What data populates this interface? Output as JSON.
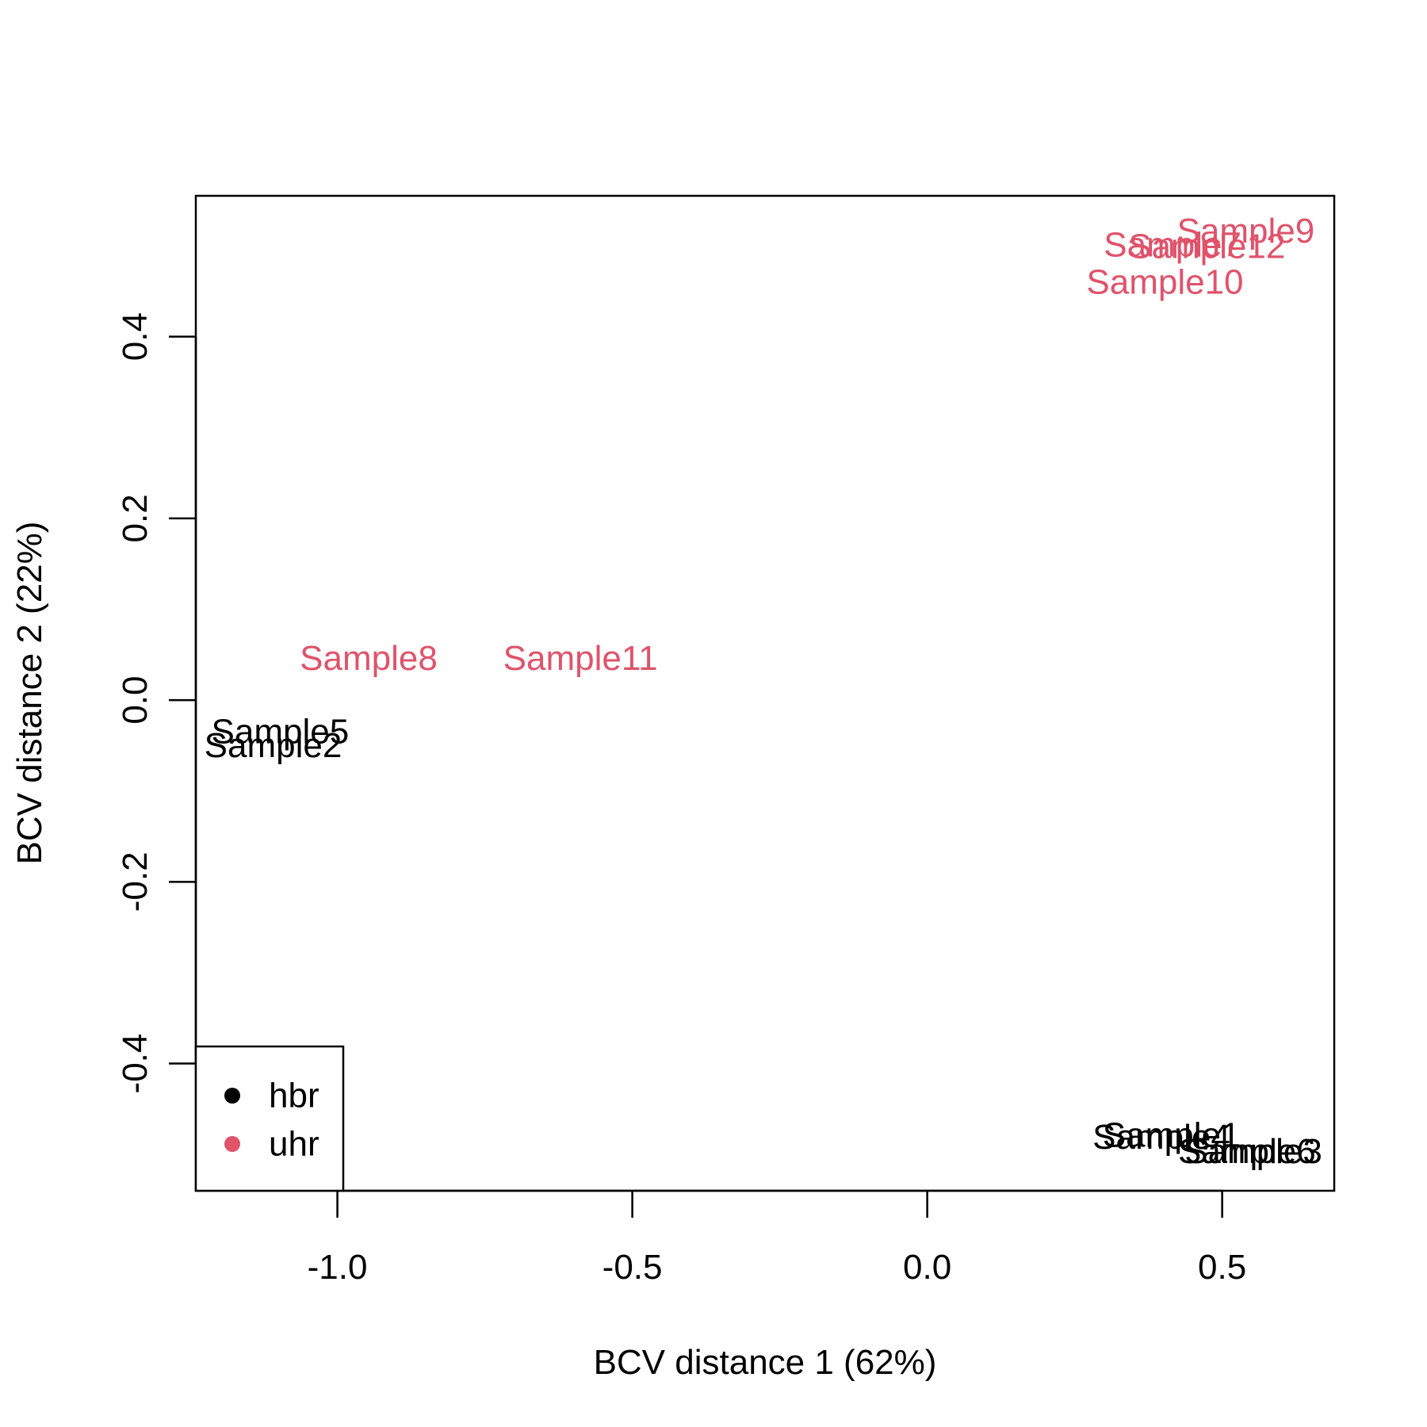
{
  "chart_data": {
    "type": "scatter",
    "title": "",
    "xlabel": "BCV distance 1 (62%)",
    "ylabel": "BCV distance 2 (22%)",
    "xlim": [
      -1.24,
      0.69
    ],
    "ylim": [
      -0.54,
      0.555
    ],
    "x_ticks": [
      -1.0,
      -0.5,
      0.0,
      0.5
    ],
    "x_tick_labels": [
      "-1.0",
      "-0.5",
      "0.0",
      "0.5"
    ],
    "y_ticks": [
      -0.4,
      -0.2,
      0.0,
      0.2,
      0.4
    ],
    "y_tick_labels": [
      "-0.4",
      "-0.2",
      "0.0",
      "0.2",
      "0.4"
    ],
    "grid": false,
    "legend_position": "bottom-left",
    "groups": [
      {
        "name": "hbr",
        "color": "#000000"
      },
      {
        "name": "uhr",
        "color": "#DF536B"
      }
    ],
    "points": [
      {
        "label": "Sample1",
        "group": "hbr",
        "x": 0.414,
        "y": -0.479
      },
      {
        "label": "Sample2",
        "group": "hbr",
        "x": -1.109,
        "y": -0.05
      },
      {
        "label": "Sample3",
        "group": "hbr",
        "x": 0.553,
        "y": -0.497
      },
      {
        "label": "Sample4",
        "group": "hbr",
        "x": 0.397,
        "y": -0.481
      },
      {
        "label": "Sample5",
        "group": "hbr",
        "x": -1.097,
        "y": -0.035
      },
      {
        "label": "Sample6",
        "group": "hbr",
        "x": 0.542,
        "y": -0.497
      },
      {
        "label": "Sample7",
        "group": "uhr",
        "x": 0.416,
        "y": 0.501
      },
      {
        "label": "Sample8",
        "group": "uhr",
        "x": -0.947,
        "y": 0.046
      },
      {
        "label": "Sample9",
        "group": "uhr",
        "x": 0.54,
        "y": 0.516
      },
      {
        "label": "Sample10",
        "group": "uhr",
        "x": 0.403,
        "y": 0.46
      },
      {
        "label": "Sample11",
        "group": "uhr",
        "x": -0.588,
        "y": 0.046
      },
      {
        "label": "Sample12",
        "group": "uhr",
        "x": 0.474,
        "y": 0.499
      }
    ]
  }
}
